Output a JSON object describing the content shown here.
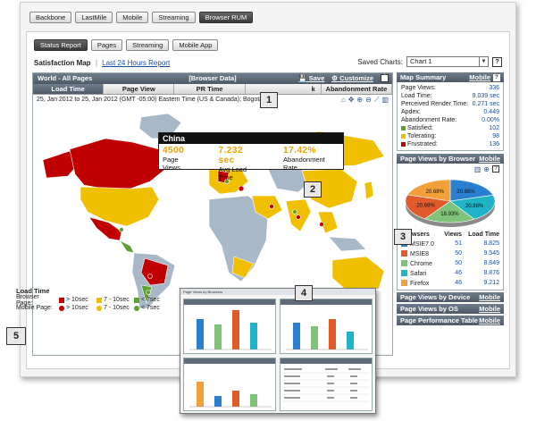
{
  "top_tabs": [
    {
      "label": "Backbone",
      "active": false
    },
    {
      "label": "LastMile",
      "active": false
    },
    {
      "label": "Mobile",
      "active": false
    },
    {
      "label": "Streaming",
      "active": false
    },
    {
      "label": "Browser RUM",
      "active": true
    }
  ],
  "sub_tabs": [
    {
      "label": "Status Report",
      "active": true
    },
    {
      "label": "Pages",
      "active": false
    },
    {
      "label": "Streaming",
      "active": false
    },
    {
      "label": "Mobile App",
      "active": false
    }
  ],
  "satisfaction": {
    "title": "Satisfaction Map",
    "separator": "|",
    "link": "Last 24 Hours Report"
  },
  "saved_charts": {
    "label": "Saved Charts:",
    "value": "Chart 1",
    "help": "?"
  },
  "map_panel": {
    "title": "World - All Pages",
    "center_title": "[Browser Data]",
    "save": "Save",
    "customize": "Customize",
    "help": "?",
    "tabs": [
      {
        "label": "Load Time",
        "active": true
      },
      {
        "label": "Page View",
        "active": false
      },
      {
        "label": "PR Time",
        "active": false
      },
      {
        "label": "k",
        "active": false
      },
      {
        "label": "Abandonment Rate",
        "active": false
      }
    ],
    "date_range": "25, Jan 2012 to 25, Jan 2012 (GMT -05:00) Eastern Time (US & Canada); Bogota",
    "tooltip": {
      "country": "China",
      "page_views": "4500",
      "page_views_label": "Page Views",
      "load_time": "7.232 sec",
      "load_time_label": "Avg Load Time",
      "abandonment": "17.42%",
      "abandonment_label": "Abandonment Rate"
    }
  },
  "legend": {
    "title": "Load Time",
    "rows": [
      {
        "label": "Browser Page:",
        "items": [
          {
            "text": "> 10sec",
            "color": "#c00000"
          },
          {
            "text": "7 - 10sec",
            "color": "#f0c000"
          },
          {
            "text": "< 7sec",
            "color": "#60a030"
          }
        ]
      },
      {
        "label": "Mobile Page:",
        "items": [
          {
            "text": "> 10sec",
            "color": "#c00000"
          },
          {
            "text": "7 - 10sec",
            "color": "#f0c000"
          },
          {
            "text": "< 7sec",
            "color": "#60a030"
          }
        ]
      }
    ]
  },
  "map_summary": {
    "title": "Map Summary",
    "mobile_link": "Mobile",
    "help": "?",
    "rows": [
      {
        "label": "Page Views:",
        "value": "336"
      },
      {
        "label": "Load Time:",
        "value": "9.039 sec"
      },
      {
        "label": "Perceived Render Time:",
        "value": "0.271 sec"
      },
      {
        "label": "Apdex:",
        "value": "0.449"
      },
      {
        "label": "Abandonment Rate:",
        "value": "0.00%"
      }
    ],
    "status": [
      {
        "label": "Satisfied:",
        "value": "102",
        "color": "#60a030"
      },
      {
        "label": "Tolerating:",
        "value": "98",
        "color": "#f0c000"
      },
      {
        "label": "Frustrated:",
        "value": "136",
        "color": "#c00000"
      }
    ]
  },
  "browser_panel": {
    "title": "Page Views by Browser",
    "mobile_link": "Mobile",
    "help": "?",
    "chart_data": {
      "type": "pie",
      "values": [
        20.98,
        20.98,
        18.93,
        20.68,
        20.68
      ],
      "labels": [
        "20.98%",
        "20.98%",
        "18.93%",
        "20.68%",
        "20.68%"
      ],
      "colors": [
        "#2a7fd0",
        "#1fb3c7",
        "#7fc27a",
        "#e05a2a",
        "#f2a03a"
      ]
    },
    "columns": [
      "Browsers",
      "Views",
      "Load Time"
    ],
    "rows": [
      {
        "name": "MSIE7.0",
        "views": "51",
        "load": "8.825",
        "color": "#2a7fd0"
      },
      {
        "name": "MSIE8",
        "views": "50",
        "load": "9.545",
        "color": "#e05a2a"
      },
      {
        "name": "Chrome",
        "views": "50",
        "load": "8.849",
        "color": "#7fc27a"
      },
      {
        "name": "Safari",
        "views": "46",
        "load": "8.876",
        "color": "#1fb3c7"
      },
      {
        "name": "Firefox",
        "views": "46",
        "load": "9.212",
        "color": "#f2a03a"
      }
    ]
  },
  "collapsed_panels": [
    {
      "title": "Page Views by Device",
      "link": "Mobile"
    },
    {
      "title": "Page Views by OS",
      "link": "Mobile"
    },
    {
      "title": "Page Performance Table",
      "link": "Mobile"
    }
  ],
  "callouts": [
    "1",
    "2",
    "3",
    "4",
    "5"
  ],
  "inset": {
    "header": "Page Views by Browsers"
  }
}
